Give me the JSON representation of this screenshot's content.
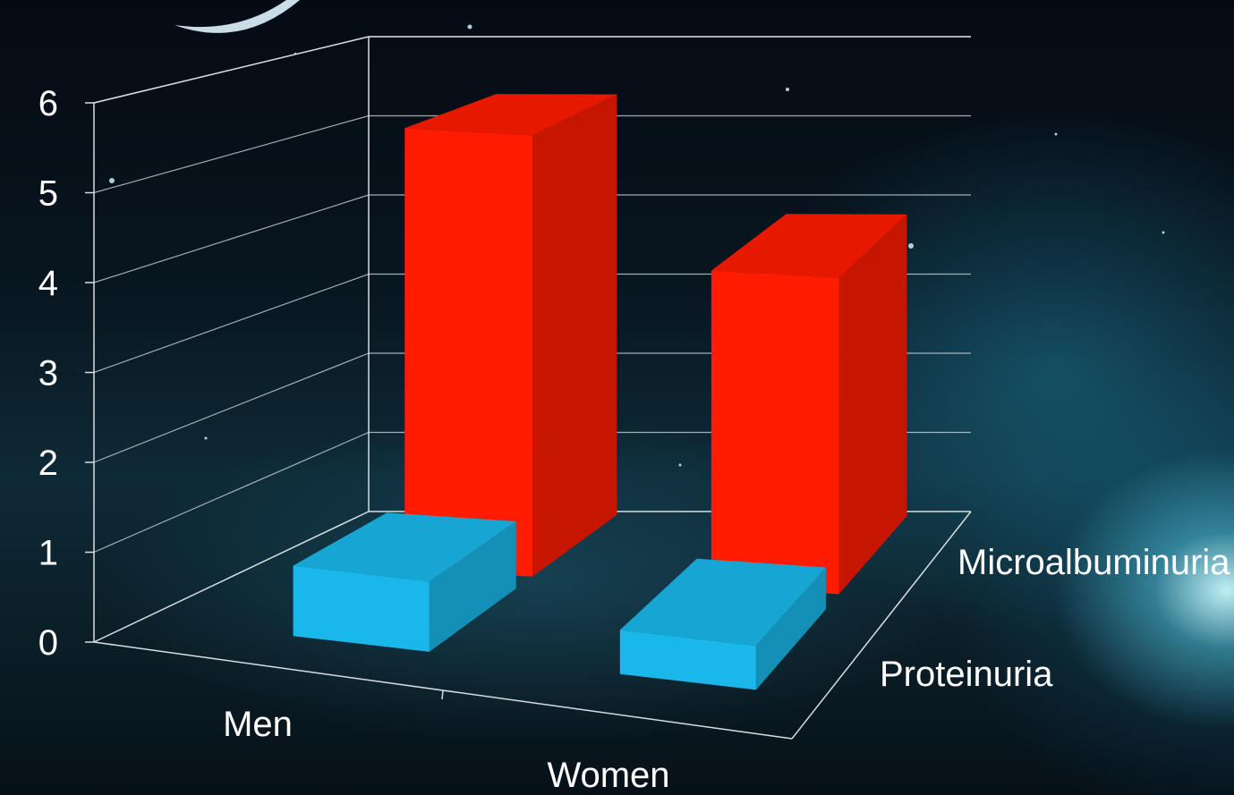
{
  "chart_data": {
    "type": "bar",
    "categories": [
      "Men",
      "Women"
    ],
    "series": [
      {
        "name": "Proteinuria",
        "values": [
          0.8,
          0.5
        ],
        "color": "#1ab8ea"
      },
      {
        "name": "Microalbuminuria",
        "values": [
          5.3,
          3.8
        ],
        "color": "#ff1c00"
      }
    ],
    "y_ticks": [
      "0",
      "1",
      "2",
      "3",
      "4",
      "5",
      "6"
    ],
    "ylim": [
      0,
      6
    ],
    "grid": true,
    "three_d": true,
    "title": "",
    "xlabel": "",
    "ylabel": ""
  }
}
